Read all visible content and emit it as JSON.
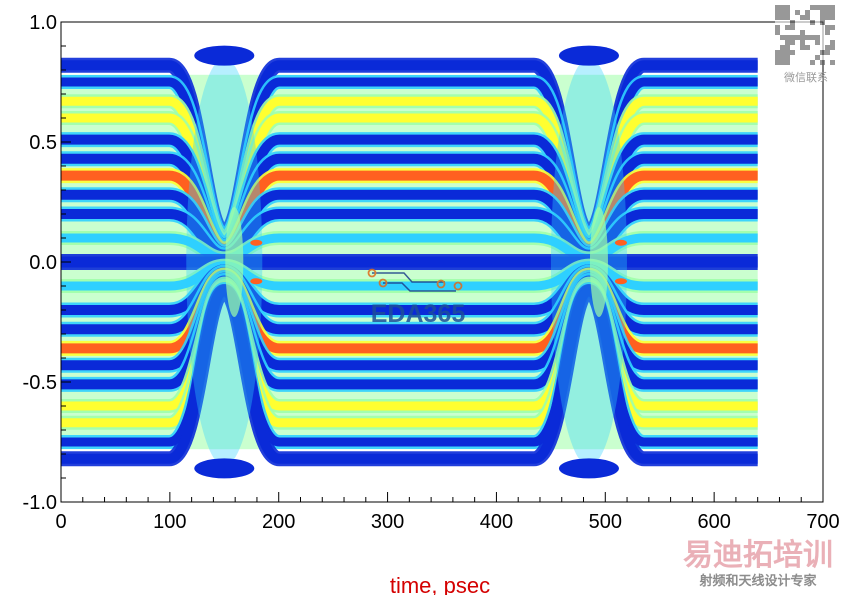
{
  "chart_data": {
    "type": "heatmap",
    "subtype": "eye-diagram density",
    "title": "",
    "xlabel": "time, psec",
    "ylabel": "",
    "xlim": [
      0,
      700
    ],
    "ylim": [
      -1.0,
      1.0
    ],
    "x_ticks": [
      0,
      100,
      200,
      300,
      400,
      500,
      600,
      700
    ],
    "y_ticks": [
      1.0,
      0.5,
      0.0,
      -0.5,
      -1.0
    ],
    "x_tick_labels": [
      "0",
      "100",
      "200",
      "300",
      "400",
      "500",
      "600",
      "700"
    ],
    "y_tick_labels": [
      "1.0",
      "0.5",
      "0.0",
      "-0.5",
      "-1.0"
    ],
    "grid": false,
    "data_x_range": [
      0,
      640
    ],
    "signal_levels": [
      0.82,
      0.75,
      0.67,
      0.6,
      0.51,
      0.43,
      0.36,
      0.28,
      0.2,
      0.1,
      0.0,
      -0.1,
      -0.2,
      -0.28,
      -0.36,
      -0.43,
      -0.51,
      -0.6,
      -0.67,
      -0.75,
      -0.82
    ],
    "crossing_times": [
      150,
      485
    ],
    "color_scale": [
      "#0a2ad8",
      "#2fd0ff",
      "#9effa8",
      "#ffff30",
      "#ff6020"
    ]
  },
  "watermarks": {
    "center_logo": "EDA365",
    "qr_caption": "微信联系",
    "brand_name": "易迪拓培训",
    "brand_tagline": "射频和天线设计专家"
  }
}
